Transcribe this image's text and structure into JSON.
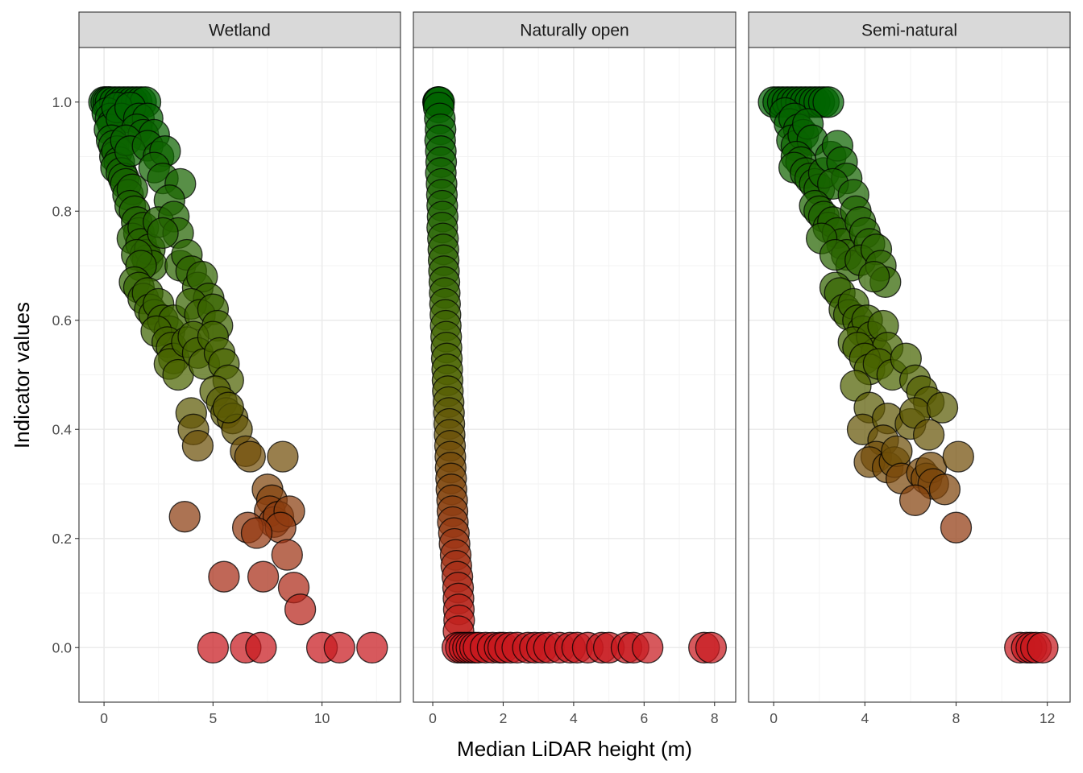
{
  "chart_data": {
    "type": "scatter",
    "xlabel": "Median LiDAR height (m)",
    "ylabel": "Indicator values",
    "ylim": [
      -0.1,
      1.1
    ],
    "yticks": [
      0.0,
      0.2,
      0.4,
      0.6,
      0.8,
      1.0
    ],
    "ytick_labels": [
      "0.0",
      "0.2",
      "0.4",
      "0.6",
      "0.8",
      "1.0"
    ],
    "color_scale": {
      "low": "#c8191e",
      "mid": "#4b6400",
      "high": "#006400"
    },
    "grid": true,
    "legend": "none",
    "panels": [
      {
        "title": "Wetland",
        "xlim": [
          -1.15,
          13.6
        ],
        "xticks": [
          0,
          5,
          10
        ],
        "xtick_labels": [
          "0",
          "5",
          "10"
        ],
        "points": [
          [
            0.0,
            1.0
          ],
          [
            0.1,
            1.0
          ],
          [
            0.2,
            1.0
          ],
          [
            0.3,
            1.0
          ],
          [
            0.5,
            1.0
          ],
          [
            0.7,
            1.0
          ],
          [
            0.9,
            1.0
          ],
          [
            1.1,
            1.0
          ],
          [
            1.3,
            1.0
          ],
          [
            1.5,
            1.0
          ],
          [
            1.7,
            1.0
          ],
          [
            1.9,
            1.0
          ],
          [
            0.15,
            0.98
          ],
          [
            0.3,
            0.97
          ],
          [
            0.4,
            0.96
          ],
          [
            0.25,
            0.95
          ],
          [
            0.6,
            0.99
          ],
          [
            0.8,
            0.97
          ],
          [
            1.2,
            0.99
          ],
          [
            1.6,
            0.97
          ],
          [
            2.0,
            0.97
          ],
          [
            1.5,
            0.95
          ],
          [
            1.8,
            0.94
          ],
          [
            2.3,
            0.94
          ],
          [
            0.35,
            0.93
          ],
          [
            0.45,
            0.92
          ],
          [
            0.5,
            0.9
          ],
          [
            0.6,
            0.91
          ],
          [
            0.7,
            0.89
          ],
          [
            0.55,
            0.88
          ],
          [
            0.8,
            0.87
          ],
          [
            0.9,
            0.86
          ],
          [
            1.0,
            0.85
          ],
          [
            1.1,
            0.83
          ],
          [
            1.3,
            0.84
          ],
          [
            1.0,
            0.93
          ],
          [
            1.2,
            0.91
          ],
          [
            2.0,
            0.92
          ],
          [
            2.5,
            0.9
          ],
          [
            2.8,
            0.91
          ],
          [
            2.3,
            0.88
          ],
          [
            2.7,
            0.86
          ],
          [
            1.2,
            0.81
          ],
          [
            1.4,
            0.8
          ],
          [
            1.5,
            0.78
          ],
          [
            1.6,
            0.76
          ],
          [
            1.3,
            0.75
          ],
          [
            1.8,
            0.77
          ],
          [
            1.7,
            0.74
          ],
          [
            1.9,
            0.72
          ],
          [
            2.0,
            0.71
          ],
          [
            2.1,
            0.73
          ],
          [
            2.2,
            0.7
          ],
          [
            1.5,
            0.72
          ],
          [
            1.7,
            0.7
          ],
          [
            3.5,
            0.85
          ],
          [
            3.0,
            0.82
          ],
          [
            2.5,
            0.78
          ],
          [
            3.2,
            0.79
          ],
          [
            3.4,
            0.76
          ],
          [
            1.4,
            0.67
          ],
          [
            1.6,
            0.66
          ],
          [
            1.8,
            0.64
          ],
          [
            2.0,
            0.65
          ],
          [
            2.1,
            0.62
          ],
          [
            2.3,
            0.61
          ],
          [
            2.5,
            0.63
          ],
          [
            2.7,
            0.6
          ],
          [
            3.0,
            0.58
          ],
          [
            3.2,
            0.6
          ],
          [
            2.4,
            0.58
          ],
          [
            2.7,
            0.76
          ],
          [
            3.5,
            0.7
          ],
          [
            3.8,
            0.72
          ],
          [
            4.0,
            0.69
          ],
          [
            4.3,
            0.66
          ],
          [
            4.5,
            0.68
          ],
          [
            4.8,
            0.64
          ],
          [
            4.0,
            0.63
          ],
          [
            4.4,
            0.61
          ],
          [
            5.0,
            0.62
          ],
          [
            5.2,
            0.59
          ],
          [
            2.9,
            0.56
          ],
          [
            3.1,
            0.55
          ],
          [
            3.2,
            0.53
          ],
          [
            3.0,
            0.52
          ],
          [
            3.4,
            0.5
          ],
          [
            3.8,
            0.56
          ],
          [
            4.1,
            0.57
          ],
          [
            4.3,
            0.54
          ],
          [
            4.6,
            0.52
          ],
          [
            5.0,
            0.57
          ],
          [
            5.3,
            0.54
          ],
          [
            5.5,
            0.52
          ],
          [
            5.7,
            0.49
          ],
          [
            5.1,
            0.47
          ],
          [
            5.4,
            0.45
          ],
          [
            5.6,
            0.43
          ],
          [
            5.9,
            0.42
          ],
          [
            6.1,
            0.4
          ],
          [
            5.7,
            0.44
          ],
          [
            4.0,
            0.43
          ],
          [
            4.1,
            0.4
          ],
          [
            4.3,
            0.37
          ],
          [
            6.5,
            0.36
          ],
          [
            6.7,
            0.35
          ],
          [
            8.2,
            0.35
          ],
          [
            3.7,
            0.24
          ],
          [
            7.5,
            0.29
          ],
          [
            7.7,
            0.27
          ],
          [
            7.6,
            0.25
          ],
          [
            7.8,
            0.23
          ],
          [
            8.0,
            0.24
          ],
          [
            8.5,
            0.25
          ],
          [
            8.1,
            0.22
          ],
          [
            6.6,
            0.22
          ],
          [
            7.0,
            0.21
          ],
          [
            8.4,
            0.17
          ],
          [
            5.5,
            0.13
          ],
          [
            7.3,
            0.13
          ],
          [
            8.7,
            0.11
          ],
          [
            9.0,
            0.07
          ],
          [
            5.0,
            0.0
          ],
          [
            6.5,
            0.0
          ],
          [
            7.2,
            0.0
          ],
          [
            10.0,
            0.0
          ],
          [
            10.8,
            0.0
          ],
          [
            12.3,
            0.0
          ]
        ]
      },
      {
        "title": "Naturally open",
        "xlim": [
          -0.55,
          8.6
        ],
        "xticks": [
          0,
          2,
          4,
          6,
          8
        ],
        "xtick_labels": [
          "0",
          "2",
          "4",
          "6",
          "8"
        ],
        "points": [
          [
            0.15,
            1.0
          ],
          [
            0.16,
            1.0
          ],
          [
            0.18,
            1.0
          ],
          [
            0.17,
            0.99
          ],
          [
            0.2,
            0.97
          ],
          [
            0.22,
            0.95
          ],
          [
            0.21,
            0.93
          ],
          [
            0.23,
            0.91
          ],
          [
            0.24,
            0.89
          ],
          [
            0.23,
            0.87
          ],
          [
            0.25,
            0.85
          ],
          [
            0.26,
            0.83
          ],
          [
            0.27,
            0.81
          ],
          [
            0.28,
            0.79
          ],
          [
            0.27,
            0.77
          ],
          [
            0.29,
            0.75
          ],
          [
            0.3,
            0.73
          ],
          [
            0.31,
            0.71
          ],
          [
            0.32,
            0.69
          ],
          [
            0.33,
            0.67
          ],
          [
            0.34,
            0.65
          ],
          [
            0.35,
            0.63
          ],
          [
            0.36,
            0.61
          ],
          [
            0.37,
            0.59
          ],
          [
            0.38,
            0.57
          ],
          [
            0.39,
            0.55
          ],
          [
            0.4,
            0.53
          ],
          [
            0.41,
            0.51
          ],
          [
            0.42,
            0.49
          ],
          [
            0.43,
            0.47
          ],
          [
            0.45,
            0.45
          ],
          [
            0.46,
            0.43
          ],
          [
            0.47,
            0.41
          ],
          [
            0.48,
            0.39
          ],
          [
            0.49,
            0.37
          ],
          [
            0.5,
            0.35
          ],
          [
            0.51,
            0.33
          ],
          [
            0.52,
            0.31
          ],
          [
            0.53,
            0.29
          ],
          [
            0.55,
            0.27
          ],
          [
            0.56,
            0.25
          ],
          [
            0.57,
            0.23
          ],
          [
            0.6,
            0.21
          ],
          [
            0.62,
            0.19
          ],
          [
            0.65,
            0.17
          ],
          [
            0.67,
            0.15
          ],
          [
            0.7,
            0.13
          ],
          [
            0.72,
            0.11
          ],
          [
            0.73,
            0.09
          ],
          [
            0.74,
            0.07
          ],
          [
            0.75,
            0.05
          ],
          [
            0.73,
            0.03
          ],
          [
            0.7,
            0.0
          ],
          [
            0.8,
            0.0
          ],
          [
            0.9,
            0.0
          ],
          [
            1.0,
            0.0
          ],
          [
            1.1,
            0.0
          ],
          [
            1.2,
            0.0
          ],
          [
            1.3,
            0.0
          ],
          [
            1.5,
            0.0
          ],
          [
            1.7,
            0.0
          ],
          [
            1.9,
            0.0
          ],
          [
            2.0,
            0.0
          ],
          [
            2.2,
            0.0
          ],
          [
            2.4,
            0.0
          ],
          [
            2.7,
            0.0
          ],
          [
            2.9,
            0.0
          ],
          [
            3.1,
            0.0
          ],
          [
            3.3,
            0.0
          ],
          [
            3.6,
            0.0
          ],
          [
            3.9,
            0.0
          ],
          [
            4.1,
            0.0
          ],
          [
            4.4,
            0.0
          ],
          [
            4.8,
            0.0
          ],
          [
            5.0,
            0.0
          ],
          [
            5.5,
            0.0
          ],
          [
            5.7,
            0.0
          ],
          [
            6.1,
            0.0
          ],
          [
            7.7,
            0.0
          ],
          [
            7.9,
            0.0
          ]
        ]
      },
      {
        "title": "Semi-natural",
        "xlim": [
          -1.1,
          13.0
        ],
        "xticks": [
          0,
          4,
          8,
          12
        ],
        "xtick_labels": [
          "0",
          "4",
          "8",
          "12"
        ],
        "points": [
          [
            0.0,
            1.0
          ],
          [
            0.2,
            1.0
          ],
          [
            0.4,
            1.0
          ],
          [
            0.6,
            1.0
          ],
          [
            0.8,
            1.0
          ],
          [
            1.0,
            1.0
          ],
          [
            1.2,
            1.0
          ],
          [
            1.4,
            1.0
          ],
          [
            1.6,
            1.0
          ],
          [
            1.8,
            1.0
          ],
          [
            2.0,
            1.0
          ],
          [
            2.2,
            1.0
          ],
          [
            2.4,
            1.0
          ],
          [
            0.5,
            0.98
          ],
          [
            0.7,
            0.96
          ],
          [
            0.9,
            0.97
          ],
          [
            1.1,
            0.95
          ],
          [
            0.8,
            0.93
          ],
          [
            1.0,
            0.92
          ],
          [
            1.3,
            0.94
          ],
          [
            1.5,
            0.96
          ],
          [
            1.7,
            0.93
          ],
          [
            1.0,
            0.9
          ],
          [
            1.2,
            0.89
          ],
          [
            0.9,
            0.88
          ],
          [
            1.4,
            0.87
          ],
          [
            1.6,
            0.86
          ],
          [
            1.8,
            0.85
          ],
          [
            2.0,
            0.84
          ],
          [
            2.2,
            0.87
          ],
          [
            2.5,
            0.9
          ],
          [
            2.8,
            0.92
          ],
          [
            3.0,
            0.89
          ],
          [
            3.2,
            0.86
          ],
          [
            2.6,
            0.85
          ],
          [
            3.5,
            0.83
          ],
          [
            1.8,
            0.81
          ],
          [
            2.0,
            0.8
          ],
          [
            2.2,
            0.79
          ],
          [
            2.4,
            0.77
          ],
          [
            2.6,
            0.78
          ],
          [
            2.8,
            0.76
          ],
          [
            3.0,
            0.74
          ],
          [
            3.2,
            0.72
          ],
          [
            3.4,
            0.7
          ],
          [
            2.1,
            0.75
          ],
          [
            2.7,
            0.72
          ],
          [
            3.6,
            0.8
          ],
          [
            3.8,
            0.78
          ],
          [
            4.0,
            0.76
          ],
          [
            4.2,
            0.74
          ],
          [
            3.8,
            0.71
          ],
          [
            4.5,
            0.73
          ],
          [
            4.7,
            0.7
          ],
          [
            4.9,
            0.67
          ],
          [
            4.4,
            0.68
          ],
          [
            2.7,
            0.66
          ],
          [
            2.9,
            0.65
          ],
          [
            3.1,
            0.62
          ],
          [
            3.3,
            0.61
          ],
          [
            3.5,
            0.63
          ],
          [
            3.7,
            0.6
          ],
          [
            3.9,
            0.58
          ],
          [
            4.1,
            0.6
          ],
          [
            3.5,
            0.56
          ],
          [
            4.3,
            0.57
          ],
          [
            4.5,
            0.54
          ],
          [
            4.8,
            0.59
          ],
          [
            5.0,
            0.55
          ],
          [
            3.7,
            0.55
          ],
          [
            4.0,
            0.53
          ],
          [
            4.2,
            0.51
          ],
          [
            4.6,
            0.52
          ],
          [
            5.2,
            0.5
          ],
          [
            5.8,
            0.53
          ],
          [
            6.2,
            0.49
          ],
          [
            6.5,
            0.47
          ],
          [
            6.8,
            0.45
          ],
          [
            3.6,
            0.48
          ],
          [
            4.2,
            0.44
          ],
          [
            3.9,
            0.4
          ],
          [
            5.0,
            0.42
          ],
          [
            6.0,
            0.41
          ],
          [
            6.2,
            0.43
          ],
          [
            7.4,
            0.44
          ],
          [
            6.8,
            0.39
          ],
          [
            4.8,
            0.38
          ],
          [
            4.5,
            0.35
          ],
          [
            4.2,
            0.34
          ],
          [
            5.0,
            0.33
          ],
          [
            5.3,
            0.34
          ],
          [
            5.4,
            0.36
          ],
          [
            5.6,
            0.31
          ],
          [
            6.5,
            0.32
          ],
          [
            6.7,
            0.31
          ],
          [
            6.9,
            0.33
          ],
          [
            7.0,
            0.3
          ],
          [
            7.5,
            0.29
          ],
          [
            8.1,
            0.35
          ],
          [
            6.2,
            0.27
          ],
          [
            8.0,
            0.22
          ],
          [
            10.8,
            0.0
          ],
          [
            11.1,
            0.0
          ],
          [
            11.3,
            0.0
          ],
          [
            11.5,
            0.0
          ],
          [
            11.8,
            0.0
          ]
        ]
      }
    ]
  }
}
